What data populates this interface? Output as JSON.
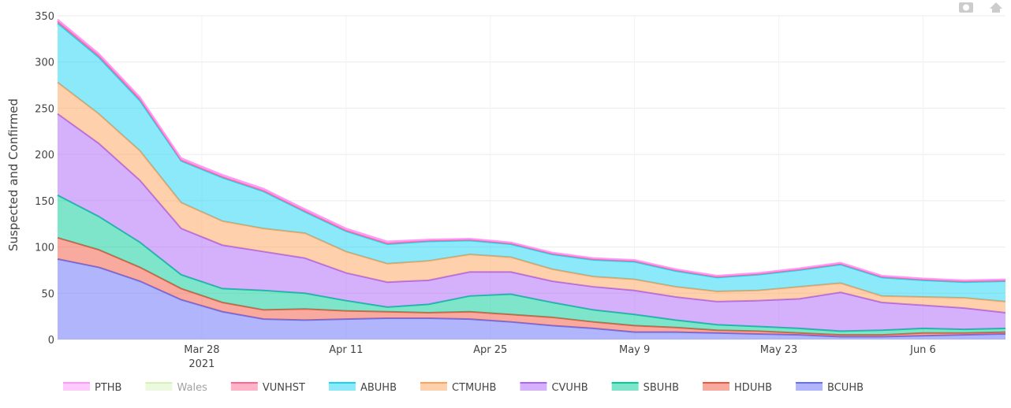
{
  "chart_data": {
    "type": "stacked-area",
    "y_axis_label": "Suspected and Confirmed",
    "x": [
      "2021-03-14",
      "2021-03-18",
      "2021-03-22",
      "2021-03-26",
      "2021-03-30",
      "2021-04-03",
      "2021-04-07",
      "2021-04-11",
      "2021-04-15",
      "2021-04-19",
      "2021-04-23",
      "2021-04-27",
      "2021-05-01",
      "2021-05-05",
      "2021-05-09",
      "2021-05-13",
      "2021-05-17",
      "2021-05-21",
      "2021-05-25",
      "2021-05-29",
      "2021-06-02",
      "2021-06-06",
      "2021-06-10",
      "2021-06-14"
    ],
    "xlim": [
      "2021-03-14",
      "2021-06-14"
    ],
    "xticks": [
      {
        "value": "2021-03-28",
        "label": "Mar 28"
      },
      {
        "value": "2021-04-11",
        "label": "Apr 11"
      },
      {
        "value": "2021-04-25",
        "label": "Apr 25"
      },
      {
        "value": "2021-05-09",
        "label": "May 9"
      },
      {
        "value": "2021-05-23",
        "label": "May 23"
      },
      {
        "value": "2021-06-06",
        "label": "Jun 6"
      }
    ],
    "x_year_label": "2021",
    "ylim": [
      0,
      350
    ],
    "yticks": [
      0,
      50,
      100,
      150,
      200,
      250,
      300,
      350
    ],
    "grid": true,
    "series": [
      {
        "name": "BCUHB",
        "color": "#636efa",
        "values": [
          87,
          78,
          63,
          43,
          30,
          22,
          21,
          22,
          23,
          23,
          22,
          19,
          15,
          12,
          8,
          8,
          7,
          6,
          5,
          3,
          3,
          4,
          5,
          6
        ]
      },
      {
        "name": "HDUHB",
        "color": "#ef553b",
        "values": [
          23,
          19,
          15,
          12,
          10,
          10,
          12,
          9,
          7,
          6,
          8,
          8,
          9,
          7,
          7,
          5,
          3,
          3,
          2,
          2,
          2,
          3,
          2,
          2
        ]
      },
      {
        "name": "SBUHB",
        "color": "#00cc96",
        "values": [
          46,
          36,
          27,
          15,
          15,
          21,
          17,
          11,
          5,
          9,
          17,
          22,
          16,
          13,
          12,
          8,
          6,
          5,
          5,
          4,
          5,
          5,
          4,
          4
        ]
      },
      {
        "name": "CVUHB",
        "color": "#ab63fa",
        "values": [
          88,
          79,
          67,
          50,
          47,
          42,
          38,
          30,
          27,
          26,
          26,
          24,
          23,
          25,
          26,
          25,
          25,
          28,
          32,
          42,
          30,
          25,
          23,
          17
        ]
      },
      {
        "name": "CTMUHB",
        "color": "#ffa15a",
        "values": [
          34,
          32,
          32,
          28,
          26,
          25,
          27,
          23,
          20,
          21,
          19,
          16,
          13,
          11,
          12,
          11,
          11,
          11,
          13,
          10,
          7,
          9,
          11,
          12
        ]
      },
      {
        "name": "ABUHB",
        "color": "#19d3f3",
        "values": [
          64,
          61,
          54,
          45,
          47,
          40,
          23,
          22,
          21,
          21,
          15,
          14,
          16,
          18,
          19,
          17,
          15,
          17,
          18,
          20,
          20,
          18,
          17,
          22
        ]
      },
      {
        "name": "VUNHST",
        "color": "#ff6692",
        "values": [
          2,
          2,
          2,
          1,
          1,
          1,
          1,
          1,
          1,
          1,
          1,
          1,
          1,
          1,
          1,
          1,
          1,
          1,
          1,
          1,
          1,
          1,
          1,
          1
        ]
      },
      {
        "name": "Wales",
        "color": "#b6e880",
        "visible": false
      },
      {
        "name": "PTHB",
        "color": "#ff97ff",
        "values": [
          2,
          2,
          2,
          2,
          2,
          2,
          2,
          2,
          2,
          1,
          1,
          1,
          1,
          1,
          1,
          1,
          1,
          1,
          1,
          1,
          1,
          1,
          1,
          1
        ]
      }
    ],
    "legend_order": [
      8,
      7,
      6,
      5,
      4,
      3,
      2,
      1,
      0
    ]
  }
}
